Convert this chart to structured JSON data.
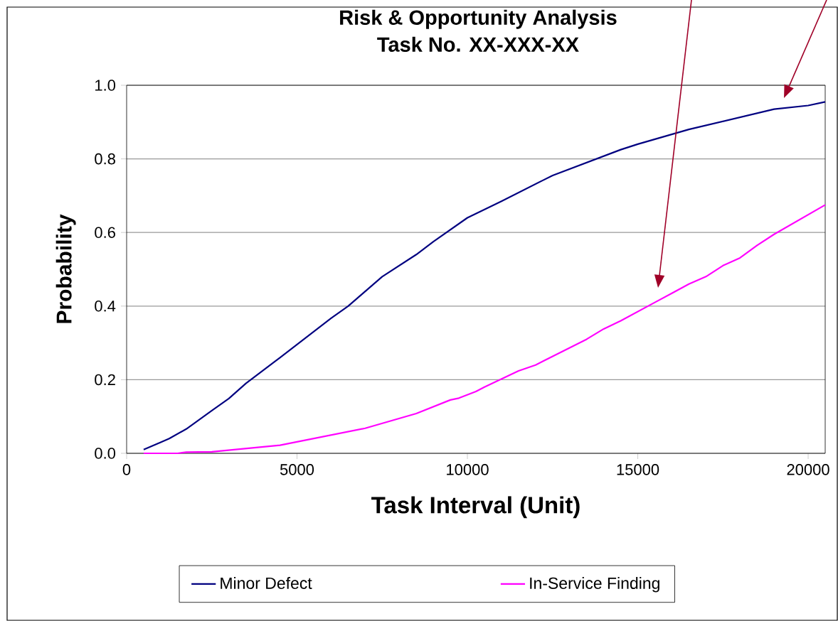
{
  "chart_data": {
    "type": "line",
    "title": "Risk & Opportunity Analysis",
    "subtitle": "Task No. XX-XXX-XX",
    "xlabel": "Task Interval  (Unit)",
    "ylabel": "Probability",
    "xlim": [
      0,
      20500
    ],
    "xticks": [
      0,
      5000,
      10000,
      15000,
      20000
    ],
    "ylim": [
      0,
      1
    ],
    "yticks": [
      {
        "value": 0,
        "label": "0.0"
      },
      {
        "value": 0.2,
        "label": "0.2"
      },
      {
        "value": 0.4,
        "label": "0.4"
      },
      {
        "value": 0.6,
        "label": "0.6"
      },
      {
        "value": 0.8,
        "label": "0.8"
      },
      {
        "value": 1,
        "label": "1.0"
      }
    ],
    "grid": "y",
    "legend": "bottom",
    "marker": "none",
    "line_style": "solid",
    "series": [
      {
        "name": "Minor Defect",
        "color": "#000080",
        "x": [
          500,
          1000,
          1250,
          1750,
          2500,
          3000,
          3500,
          4500,
          6000,
          6500,
          7500,
          8500,
          9000,
          10000,
          11000,
          12500,
          14500,
          15000,
          16500,
          19000,
          20000,
          20500
        ],
        "values": [
          0.01,
          0.03,
          0.04,
          0.066,
          0.116,
          0.149,
          0.19,
          0.26,
          0.367,
          0.4,
          0.48,
          0.54,
          0.575,
          0.64,
          0.685,
          0.755,
          0.825,
          0.84,
          0.88,
          0.935,
          0.945,
          0.955
        ]
      },
      {
        "name": "In-Service Finding",
        "color": "#ff00ff",
        "x": [
          500,
          1250,
          1500,
          1750,
          2500,
          4500,
          7000,
          8500,
          9500,
          9750,
          10250,
          10500,
          11500,
          12000,
          13500,
          14000,
          14500,
          15500,
          16000,
          16500,
          17000,
          17500,
          18000,
          18500,
          19000,
          20500
        ],
        "values": [
          0,
          0,
          0,
          0.003,
          0.004,
          0.022,
          0.068,
          0.108,
          0.145,
          0.15,
          0.168,
          0.18,
          0.224,
          0.24,
          0.31,
          0.338,
          0.36,
          0.41,
          0.435,
          0.46,
          0.48,
          0.51,
          0.531,
          0.565,
          0.595,
          0.675
        ]
      }
    ]
  }
}
